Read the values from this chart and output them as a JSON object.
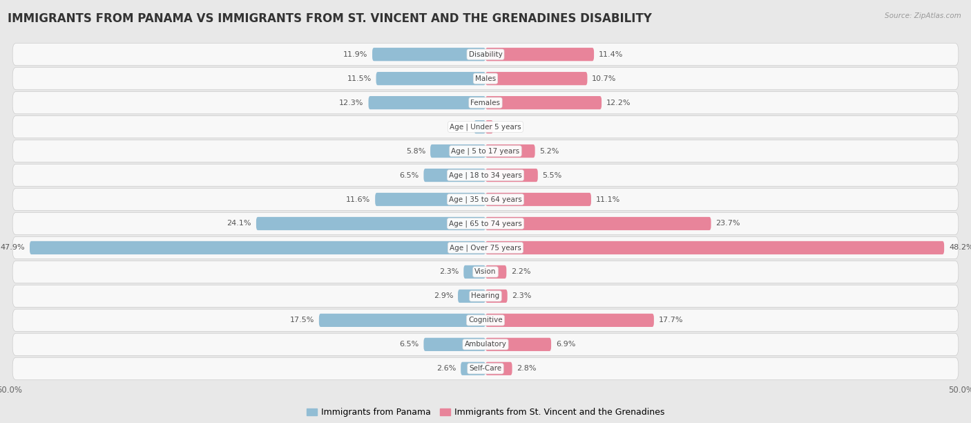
{
  "title": "IMMIGRANTS FROM PANAMA VS IMMIGRANTS FROM ST. VINCENT AND THE GRENADINES DISABILITY",
  "source": "Source: ZipAtlas.com",
  "categories": [
    "Disability",
    "Males",
    "Females",
    "Age | Under 5 years",
    "Age | 5 to 17 years",
    "Age | 18 to 34 years",
    "Age | 35 to 64 years",
    "Age | 65 to 74 years",
    "Age | Over 75 years",
    "Vision",
    "Hearing",
    "Cognitive",
    "Ambulatory",
    "Self-Care"
  ],
  "left_values": [
    11.9,
    11.5,
    12.3,
    1.2,
    5.8,
    6.5,
    11.6,
    24.1,
    47.9,
    2.3,
    2.9,
    17.5,
    6.5,
    2.6
  ],
  "right_values": [
    11.4,
    10.7,
    12.2,
    0.79,
    5.2,
    5.5,
    11.1,
    23.7,
    48.2,
    2.2,
    2.3,
    17.7,
    6.9,
    2.8
  ],
  "left_color": "#92bdd4",
  "right_color": "#e8849a",
  "left_label": "Immigrants from Panama",
  "right_label": "Immigrants from St. Vincent and the Grenadines",
  "axis_limit": 50.0,
  "background_color": "#e8e8e8",
  "row_color_odd": "#f5f5f5",
  "row_color_even": "#ebebeb",
  "title_fontsize": 12,
  "value_fontsize": 8,
  "category_fontsize": 7.5
}
